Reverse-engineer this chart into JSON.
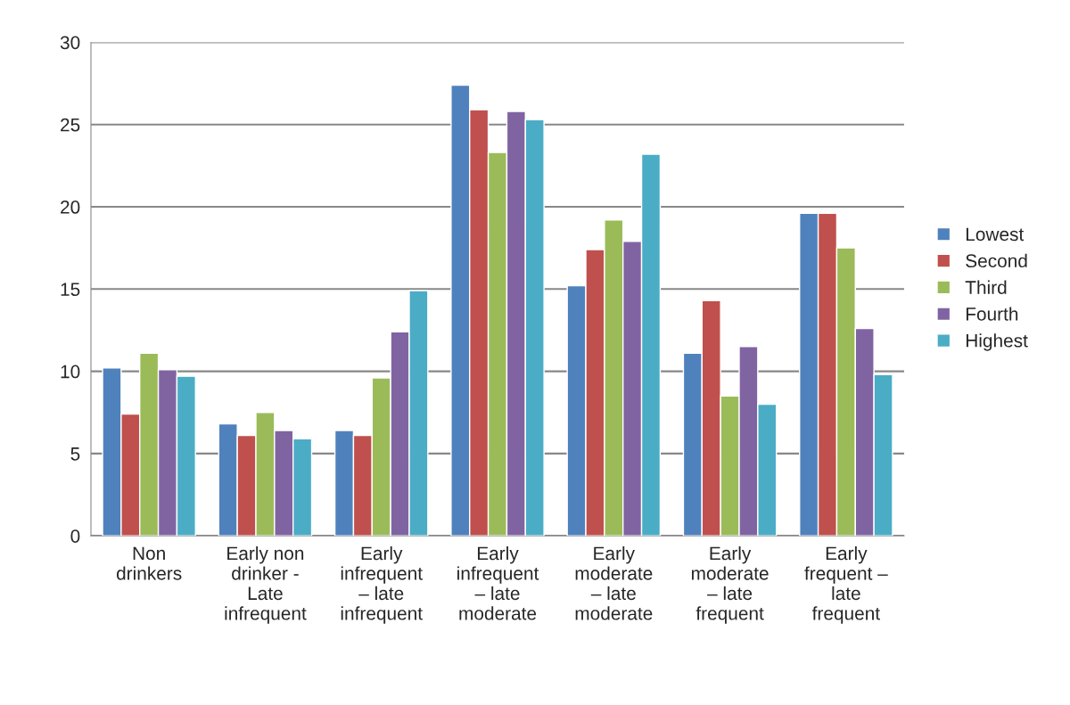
{
  "chart_data": {
    "type": "bar",
    "categories": [
      "Non\ndrinkers",
      "Early non\ndrinker -\nLate\ninfrequent",
      "Early\ninfrequent\n– late\ninfrequent",
      "Early\ninfrequent\n– late\nmoderate",
      "Early\nmoderate\n– late\nmoderate",
      "Early\nmoderate\n– late\nfrequent",
      "Early\nfrequent –\nlate\nfrequent"
    ],
    "series": [
      {
        "name": "Lowest",
        "color": "#4f81bd",
        "values": [
          10.2,
          6.8,
          6.4,
          27.4,
          15.2,
          11.1,
          19.6
        ]
      },
      {
        "name": "Second",
        "color": "#c0504d",
        "values": [
          7.4,
          6.1,
          6.1,
          25.9,
          17.4,
          14.3,
          19.6
        ]
      },
      {
        "name": "Third",
        "color": "#9bbb59",
        "values": [
          11.1,
          7.5,
          9.6,
          23.3,
          19.2,
          8.5,
          17.5
        ]
      },
      {
        "name": "Fourth",
        "color": "#8064a2",
        "values": [
          10.1,
          6.4,
          12.4,
          25.8,
          17.9,
          11.5,
          12.6
        ]
      },
      {
        "name": "Highest",
        "color": "#4bacc6",
        "values": [
          9.7,
          5.9,
          14.9,
          25.3,
          23.2,
          8.0,
          9.8
        ]
      }
    ],
    "ylim": [
      0,
      30
    ],
    "yticks": [
      0,
      5,
      10,
      15,
      20,
      25,
      30
    ],
    "grid": "y",
    "legend": "right"
  }
}
